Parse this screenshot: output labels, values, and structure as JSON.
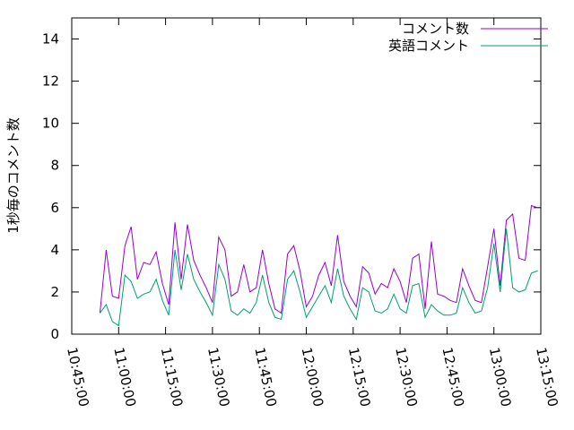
{
  "chart_data": {
    "type": "line",
    "ylabel": "1秒毎のコメント数",
    "x": [
      "10:54:00",
      "10:56:00",
      "10:58:00",
      "11:00:00",
      "11:02:00",
      "11:04:00",
      "11:06:00",
      "11:08:00",
      "11:10:00",
      "11:12:00",
      "11:14:00",
      "11:16:00",
      "11:18:00",
      "11:20:00",
      "11:22:00",
      "11:24:00",
      "11:26:00",
      "11:28:00",
      "11:30:00",
      "11:32:00",
      "11:34:00",
      "11:36:00",
      "11:38:00",
      "11:40:00",
      "11:42:00",
      "11:44:00",
      "11:46:00",
      "11:48:00",
      "11:50:00",
      "11:52:00",
      "11:54:00",
      "11:56:00",
      "11:58:00",
      "12:00:00",
      "12:02:00",
      "12:04:00",
      "12:06:00",
      "12:08:00",
      "12:10:00",
      "12:12:00",
      "12:14:00",
      "12:16:00",
      "12:18:00",
      "12:20:00",
      "12:22:00",
      "12:24:00",
      "12:26:00",
      "12:28:00",
      "12:30:00",
      "12:32:00",
      "12:34:00",
      "12:36:00",
      "12:38:00",
      "12:40:00",
      "12:42:00",
      "12:44:00",
      "12:46:00",
      "12:48:00",
      "12:50:00",
      "12:52:00",
      "12:54:00",
      "12:56:00",
      "12:58:00",
      "13:00:00",
      "13:02:00",
      "13:04:00",
      "13:06:00",
      "13:08:00",
      "13:10:00",
      "13:12:00",
      "13:14:00"
    ],
    "series": [
      {
        "name": "コメント数",
        "color": "#9400d3",
        "values": [
          1.0,
          4.0,
          1.8,
          1.7,
          4.2,
          5.1,
          2.6,
          3.4,
          3.3,
          3.9,
          2.4,
          1.4,
          5.3,
          2.6,
          5.2,
          3.5,
          2.8,
          2.2,
          1.5,
          4.6,
          4.0,
          1.8,
          2.0,
          3.3,
          2.0,
          2.2,
          4.0,
          2.4,
          1.2,
          1.0,
          3.8,
          4.2,
          3.0,
          1.3,
          1.8,
          2.8,
          3.4,
          2.3,
          4.7,
          2.5,
          1.8,
          1.3,
          3.2,
          2.9,
          1.9,
          2.4,
          2.2,
          3.1,
          2.5,
          1.5,
          3.6,
          3.8,
          1.2,
          4.4,
          1.9,
          1.8,
          1.6,
          1.5,
          3.1,
          2.3,
          1.6,
          1.5,
          3.2,
          5.0,
          2.3,
          5.4,
          5.7,
          3.6,
          3.5,
          6.1,
          6.0
        ]
      },
      {
        "name": "英語コメント",
        "color": "#009e73",
        "values": [
          1.0,
          1.4,
          0.6,
          0.4,
          2.8,
          2.5,
          1.7,
          1.9,
          2.0,
          2.6,
          1.6,
          0.9,
          4.0,
          2.1,
          3.8,
          2.6,
          2.0,
          1.5,
          0.9,
          3.3,
          2.6,
          1.1,
          0.9,
          1.2,
          1.0,
          1.5,
          2.8,
          1.5,
          0.8,
          0.7,
          2.6,
          3.0,
          2.0,
          0.8,
          1.3,
          1.8,
          2.3,
          1.5,
          3.1,
          1.8,
          1.2,
          0.7,
          2.2,
          2.0,
          1.1,
          1.0,
          1.2,
          1.9,
          1.2,
          1.0,
          2.3,
          2.4,
          0.8,
          1.4,
          1.1,
          0.9,
          0.9,
          1.0,
          2.2,
          1.5,
          1.0,
          1.1,
          2.2,
          4.3,
          2.0,
          5.0,
          2.2,
          2.0,
          2.1,
          2.9,
          3.0
        ]
      }
    ],
    "xlim": [
      "10:45:00",
      "13:15:00"
    ],
    "xticks": [
      "10:45:00",
      "11:00:00",
      "11:15:00",
      "11:30:00",
      "11:45:00",
      "12:00:00",
      "12:15:00",
      "12:30:00",
      "12:45:00",
      "13:00:00",
      "13:15:00"
    ],
    "ylim": [
      0,
      15
    ],
    "yticks": [
      0,
      2,
      4,
      6,
      8,
      10,
      12,
      14
    ],
    "legend": "top-right"
  }
}
